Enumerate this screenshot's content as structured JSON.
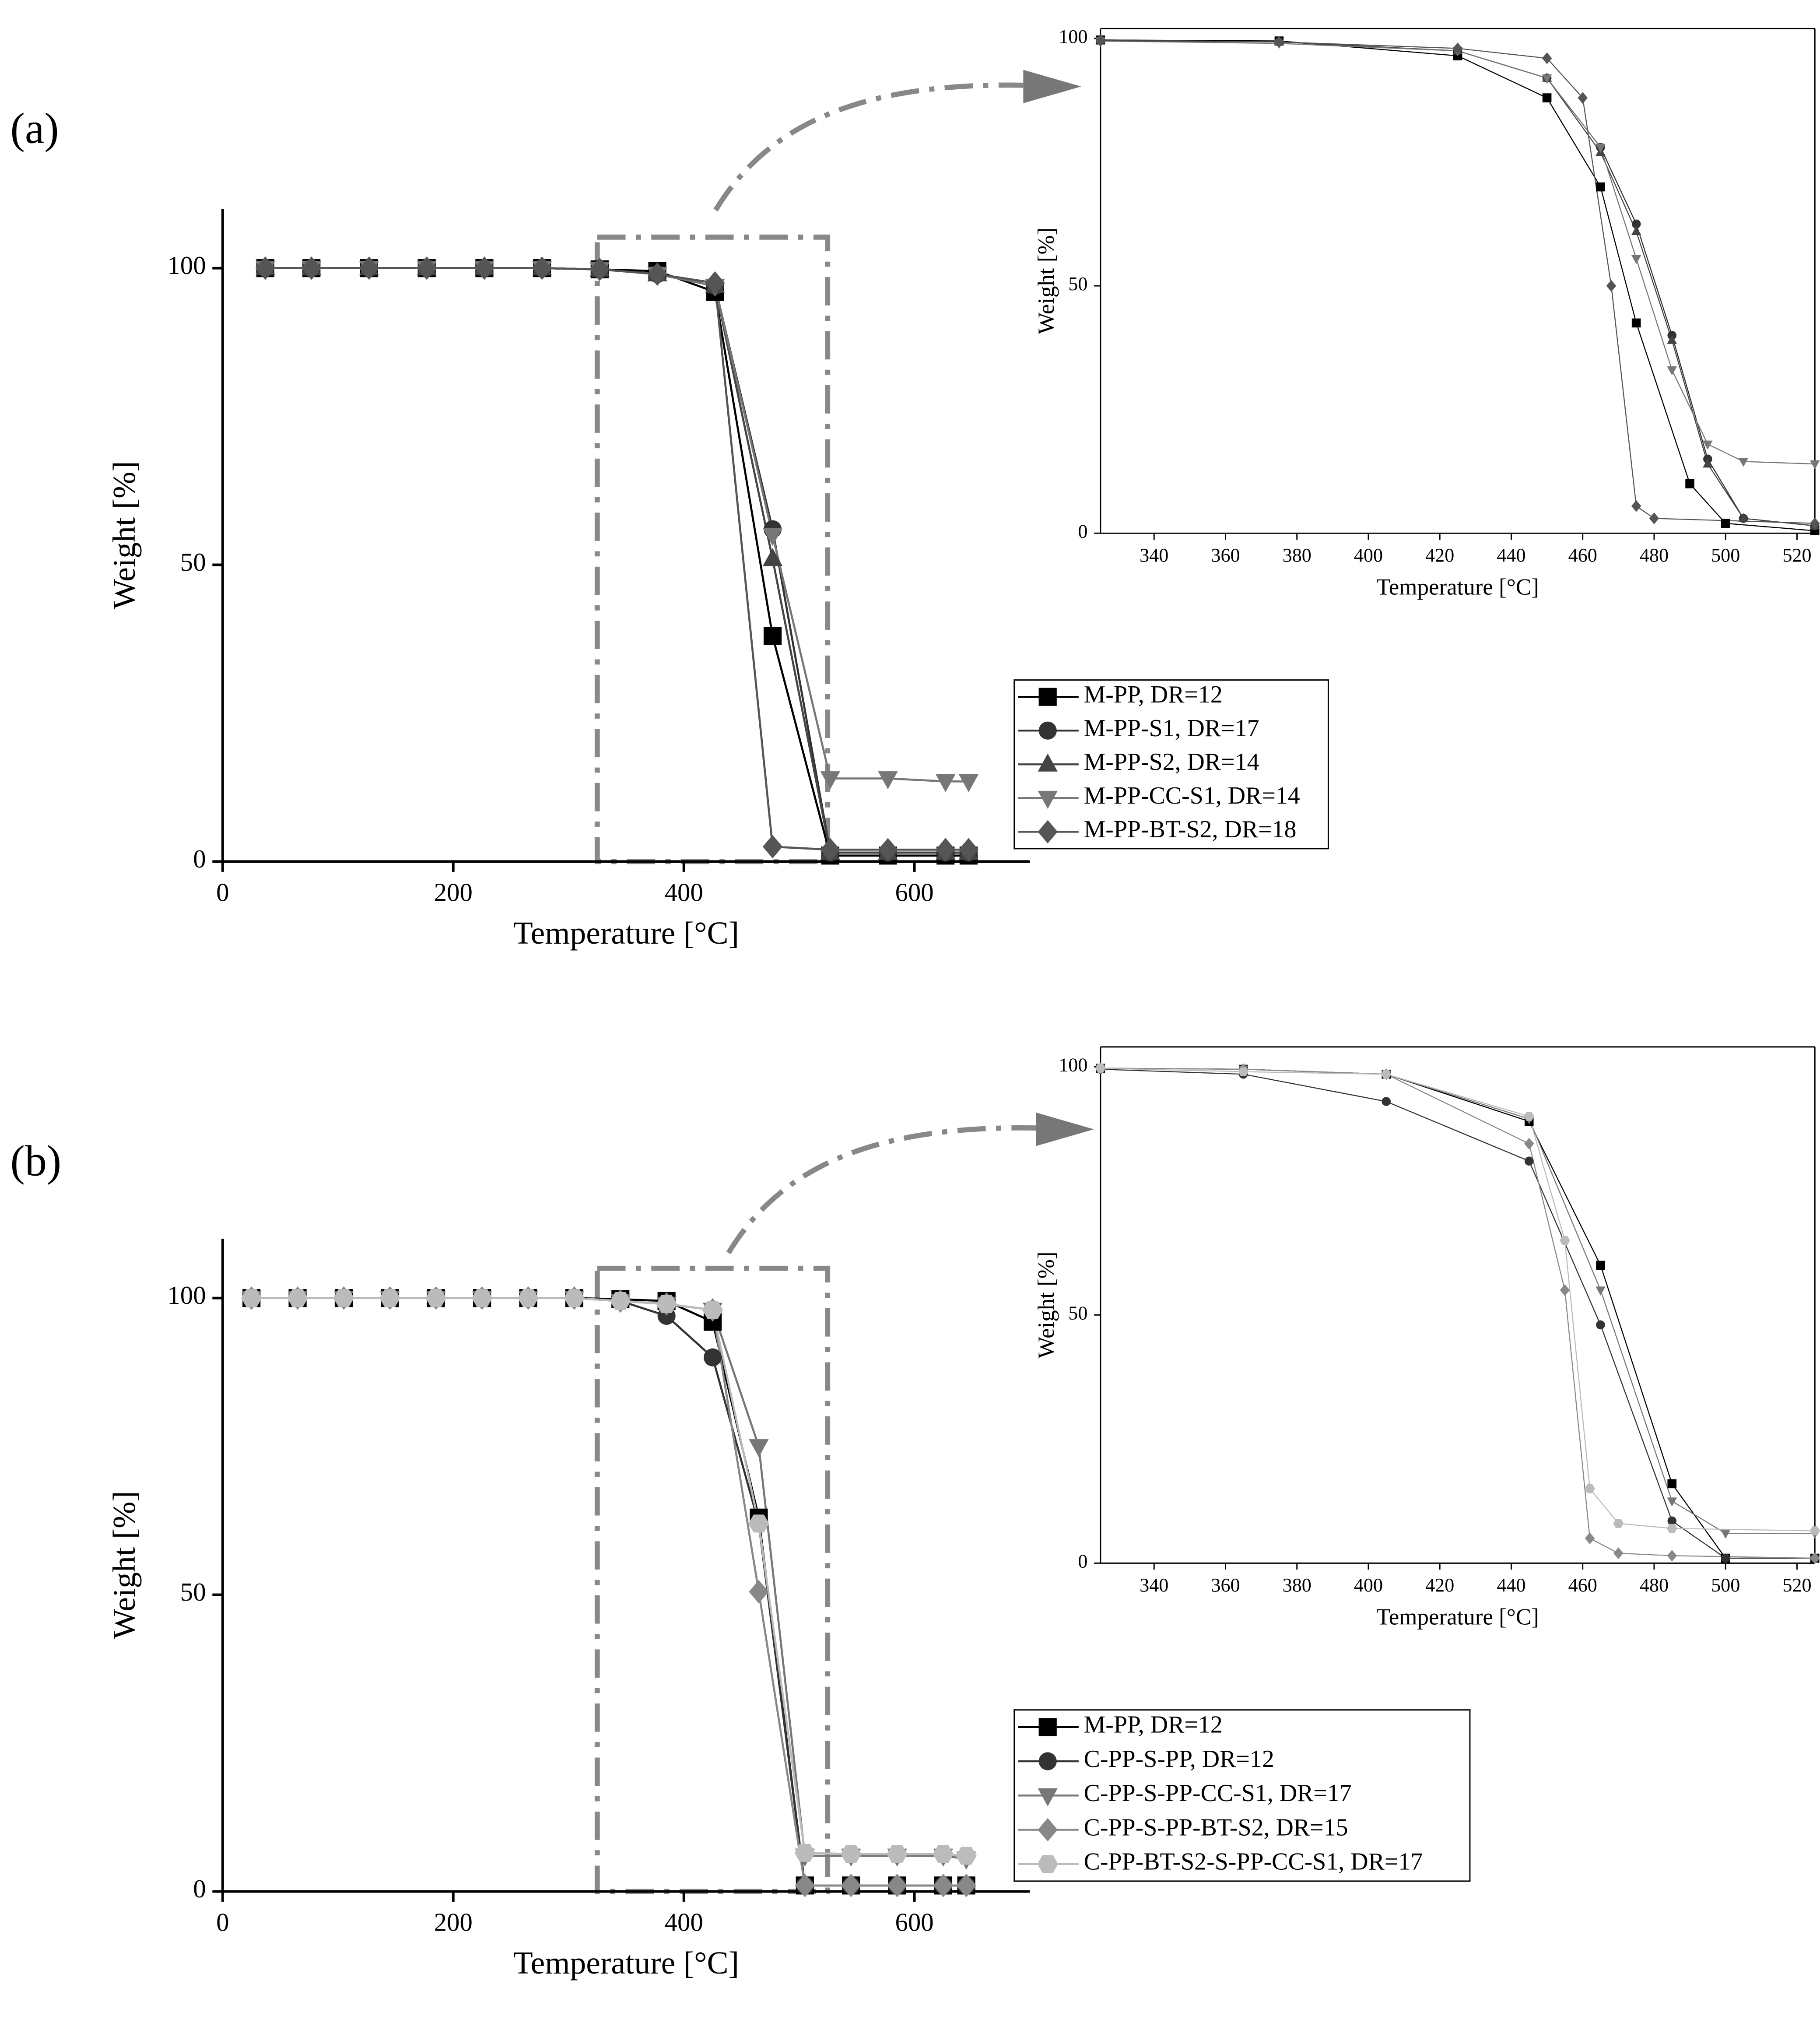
{
  "panel_labels": [
    "(a)",
    "(b)"
  ],
  "chart_data": [
    {
      "type": "line",
      "x_label": "Temperature [°C]",
      "y_label": "Weight [%]",
      "xlim": [
        0,
        700
      ],
      "xticks": [
        0,
        200,
        400,
        600
      ],
      "ylim": [
        0,
        110
      ],
      "yticks": [
        0,
        50,
        100
      ],
      "legend": true,
      "series": [
        {
          "name": "M-PP, DR=12",
          "color": "#000000",
          "marker": "square",
          "x": [
            37,
            77,
            127,
            177,
            227,
            277,
            327,
            377,
            427,
            477,
            527,
            577,
            627,
            647
          ],
          "values": [
            100,
            100,
            100,
            100,
            100,
            100,
            99.8,
            99.5,
            96,
            38,
            1,
            1,
            1,
            1
          ]
        },
        {
          "name": "M-PP-S1, DR=17",
          "color": "#333333",
          "marker": "circle",
          "x": [
            37,
            77,
            127,
            177,
            227,
            277,
            327,
            377,
            427,
            477,
            527,
            577,
            627,
            647
          ],
          "values": [
            100,
            100,
            100,
            100,
            100,
            100,
            99.8,
            99,
            97,
            56,
            1.5,
            1.5,
            1.5,
            1.5
          ]
        },
        {
          "name": "M-PP-S2, DR=14",
          "color": "#444444",
          "marker": "triangle",
          "x": [
            37,
            77,
            127,
            177,
            227,
            277,
            327,
            377,
            427,
            477,
            527,
            577,
            627,
            647
          ],
          "values": [
            100,
            100,
            100,
            100,
            100,
            100,
            99.8,
            99,
            97,
            51,
            1.5,
            1.5,
            1.5,
            1.5
          ]
        },
        {
          "name": "M-PP-CC-S1, DR=14",
          "color": "#777777",
          "marker": "triangle-down",
          "x": [
            37,
            77,
            127,
            177,
            227,
            277,
            327,
            377,
            427,
            477,
            527,
            577,
            627,
            647
          ],
          "values": [
            100,
            100,
            100,
            100,
            100,
            100,
            99.8,
            99,
            97,
            55,
            14,
            14,
            13.5,
            13.5
          ]
        },
        {
          "name": "M-PP-BT-S2, DR=18",
          "color": "#555555",
          "marker": "diamond",
          "x": [
            37,
            77,
            127,
            177,
            227,
            277,
            327,
            377,
            427,
            477,
            527,
            577,
            627,
            647
          ],
          "values": [
            100,
            100,
            100,
            100,
            100,
            100,
            99.8,
            99,
            97.5,
            2.5,
            2,
            2,
            2,
            2
          ]
        }
      ]
    },
    {
      "type": "line",
      "x_label": "Temperature [°C]",
      "y_label": "Weight [%]",
      "xlim": [
        325,
        525
      ],
      "xticks": [
        340,
        360,
        380,
        400,
        420,
        440,
        460,
        480,
        500,
        520
      ],
      "ylim": [
        0,
        102
      ],
      "yticks": [
        0,
        50,
        100
      ],
      "legend": false,
      "series": [
        {
          "color": "#000000",
          "marker": "square",
          "x": [
            325,
            375,
            425,
            450,
            465,
            475,
            490,
            500,
            525
          ],
          "values": [
            99.7,
            99.5,
            96.5,
            88,
            70,
            42.5,
            10,
            2,
            0.5
          ]
        },
        {
          "color": "#333333",
          "marker": "circle",
          "x": [
            325,
            375,
            425,
            450,
            465,
            475,
            485,
            495,
            505,
            525
          ],
          "values": [
            99.7,
            99.3,
            97.5,
            92,
            78,
            62.5,
            40,
            15,
            3,
            1.5
          ]
        },
        {
          "color": "#444444",
          "marker": "triangle",
          "x": [
            325,
            375,
            425,
            450,
            465,
            475,
            485,
            495,
            505,
            525
          ],
          "values": [
            99.7,
            99.3,
            97.5,
            92,
            77,
            61,
            39,
            14,
            3,
            1.5
          ]
        },
        {
          "color": "#777777",
          "marker": "triangle-down",
          "x": [
            325,
            375,
            425,
            450,
            465,
            475,
            485,
            495,
            505,
            525
          ],
          "values": [
            99.5,
            99,
            97.5,
            92,
            78,
            55.5,
            33,
            18,
            14.5,
            14
          ]
        },
        {
          "color": "#555555",
          "marker": "diamond",
          "x": [
            325,
            375,
            425,
            450,
            460,
            468,
            475,
            480,
            525
          ],
          "values": [
            99.5,
            99.3,
            98,
            96,
            88,
            50,
            5.5,
            3,
            2
          ]
        }
      ]
    },
    {
      "type": "line",
      "x_label": "Temperature [°C]",
      "y_label": "Weight [%]",
      "xlim": [
        0,
        700
      ],
      "xticks": [
        0,
        200,
        400,
        600
      ],
      "ylim": [
        0,
        110
      ],
      "yticks": [
        0,
        50,
        100
      ],
      "legend": true,
      "series": [
        {
          "name": "M-PP, DR=12",
          "color": "#000000",
          "marker": "square",
          "x": [
            25,
            65,
            105,
            145,
            185,
            225,
            265,
            305,
            345,
            385,
            425,
            465,
            505,
            545,
            585,
            625,
            645
          ],
          "values": [
            100,
            100,
            100,
            100,
            100,
            100,
            100,
            100,
            99.8,
            99.5,
            96,
            63,
            1,
            1,
            1,
            1,
            1
          ]
        },
        {
          "name": "C-PP-S-PP, DR=12",
          "color": "#333333",
          "marker": "circle",
          "x": [
            25,
            65,
            105,
            145,
            185,
            225,
            265,
            305,
            345,
            385,
            425,
            465,
            505,
            545,
            585,
            625,
            645
          ],
          "values": [
            100,
            100,
            100,
            100,
            100,
            100,
            100,
            100,
            99.5,
            97,
            90,
            62,
            1,
            1,
            1,
            1,
            1
          ]
        },
        {
          "name": "C-PP-S-PP-CC-S1, DR=17",
          "color": "#777777",
          "marker": "triangle-down",
          "x": [
            25,
            65,
            105,
            145,
            185,
            225,
            265,
            305,
            345,
            385,
            425,
            465,
            505,
            545,
            585,
            625,
            645
          ],
          "values": [
            100,
            100,
            100,
            100,
            100,
            100,
            100,
            100,
            99.5,
            99,
            98,
            75,
            6,
            6,
            6,
            6,
            5.5
          ]
        },
        {
          "name": "C-PP-S-PP-BT-S2, DR=15",
          "color": "#888888",
          "marker": "diamond",
          "x": [
            25,
            65,
            105,
            145,
            185,
            225,
            265,
            305,
            345,
            385,
            425,
            465,
            505,
            545,
            585,
            625,
            645
          ],
          "values": [
            100,
            100,
            100,
            100,
            100,
            100,
            100,
            100,
            99.5,
            99,
            98,
            50.5,
            1,
            1,
            1,
            1,
            1
          ]
        },
        {
          "name": "C-PP-BT-S2-S-PP-CC-S1, DR=17",
          "color": "#bbbbbb",
          "marker": "hexagon",
          "x": [
            25,
            65,
            105,
            145,
            185,
            225,
            265,
            305,
            345,
            385,
            425,
            465,
            505,
            545,
            585,
            625,
            645
          ],
          "values": [
            100,
            100,
            100,
            100,
            100,
            100,
            100,
            100,
            99.5,
            99,
            98,
            62,
            6.5,
            6.3,
            6.3,
            6.3,
            6
          ]
        }
      ]
    },
    {
      "type": "line",
      "x_label": "Temperature [°C]",
      "y_label": "Weight [%]",
      "xlim": [
        325,
        525
      ],
      "xticks": [
        340,
        360,
        380,
        400,
        420,
        440,
        460,
        480,
        500,
        520
      ],
      "ylim": [
        0,
        104
      ],
      "yticks": [
        0,
        50,
        100
      ],
      "legend": false,
      "series": [
        {
          "color": "#000000",
          "marker": "square",
          "x": [
            325,
            365,
            405,
            445,
            465,
            485,
            500,
            525
          ],
          "values": [
            99.7,
            99.5,
            98.5,
            89,
            60,
            16,
            1,
            1
          ]
        },
        {
          "color": "#333333",
          "marker": "circle",
          "x": [
            325,
            365,
            405,
            445,
            465,
            485,
            500,
            525
          ],
          "values": [
            99.5,
            98.5,
            93,
            81,
            48,
            8.5,
            1,
            1
          ]
        },
        {
          "color": "#777777",
          "marker": "triangle-down",
          "x": [
            325,
            365,
            405,
            445,
            465,
            485,
            500,
            525
          ],
          "values": [
            99.7,
            99.5,
            98.5,
            89.5,
            55,
            12.5,
            6,
            6
          ]
        },
        {
          "color": "#888888",
          "marker": "diamond",
          "x": [
            325,
            365,
            405,
            445,
            455,
            462,
            470,
            485,
            525
          ],
          "values": [
            99.7,
            99.5,
            98.5,
            84.5,
            55,
            5,
            2,
            1.5,
            1
          ]
        },
        {
          "color": "#bbbbbb",
          "marker": "hexagon",
          "x": [
            325,
            365,
            405,
            445,
            455,
            462,
            470,
            485,
            525
          ],
          "values": [
            99.7,
            99,
            98.5,
            90,
            65,
            15,
            8,
            7,
            6.5
          ]
        }
      ]
    }
  ]
}
